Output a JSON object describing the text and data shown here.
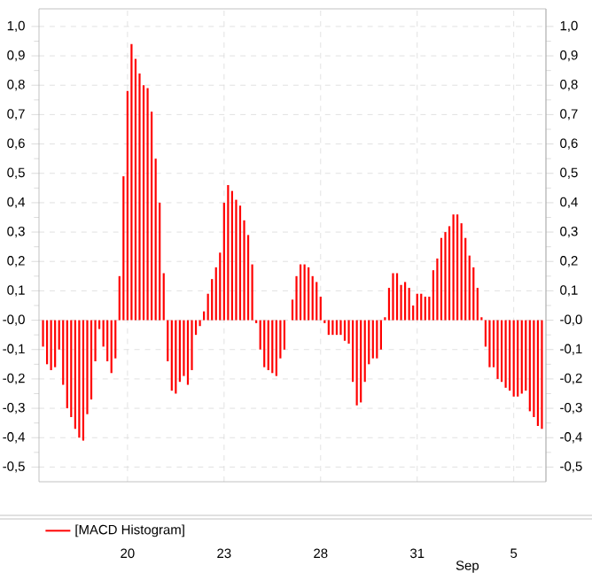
{
  "chart_data": {
    "type": "bar",
    "categories": [
      null,
      null,
      null,
      null,
      null,
      null,
      null,
      null,
      null,
      null,
      null,
      null,
      null,
      null,
      null,
      null,
      null,
      null,
      null,
      null,
      null,
      "20",
      null,
      null,
      null,
      null,
      null,
      null,
      null,
      null,
      null,
      null,
      null,
      null,
      null,
      null,
      null,
      null,
      null,
      null,
      null,
      null,
      null,
      null,
      null,
      "23",
      null,
      null,
      null,
      null,
      null,
      null,
      null,
      null,
      null,
      null,
      null,
      null,
      null,
      null,
      null,
      null,
      null,
      null,
      null,
      null,
      null,
      null,
      null,
      "28",
      null,
      null,
      null,
      null,
      null,
      null,
      null,
      null,
      null,
      null,
      null,
      null,
      null,
      null,
      null,
      null,
      null,
      null,
      null,
      null,
      null,
      null,
      null,
      "31",
      null,
      null,
      null,
      null,
      null,
      null,
      null,
      null,
      null,
      null,
      null,
      null,
      null,
      null,
      null,
      null,
      null,
      null,
      null,
      null,
      null,
      null,
      null,
      "5",
      null,
      null,
      null,
      null,
      null,
      null,
      null
    ],
    "series": [
      {
        "name": "[MACD Histogram]",
        "color": "#ff0000",
        "values": [
          -0.09,
          -0.15,
          -0.17,
          -0.16,
          -0.1,
          -0.22,
          -0.3,
          -0.33,
          -0.37,
          -0.4,
          -0.41,
          -0.32,
          -0.27,
          -0.14,
          -0.03,
          -0.09,
          -0.14,
          -0.18,
          -0.13,
          0.15,
          0.49,
          0.78,
          0.94,
          0.89,
          0.84,
          0.8,
          0.79,
          0.71,
          0.55,
          0.4,
          0.16,
          -0.14,
          -0.24,
          -0.25,
          -0.21,
          -0.19,
          -0.22,
          -0.17,
          -0.05,
          -0.02,
          0.03,
          0.09,
          0.14,
          0.18,
          0.23,
          0.4,
          0.46,
          0.44,
          0.41,
          0.39,
          0.34,
          0.29,
          0.19,
          -0.01,
          -0.1,
          -0.16,
          -0.17,
          -0.18,
          -0.19,
          -0.13,
          -0.1,
          0.0,
          0.07,
          0.15,
          0.19,
          0.19,
          0.18,
          0.15,
          0.13,
          0.08,
          -0.01,
          -0.05,
          -0.05,
          -0.05,
          -0.05,
          -0.07,
          -0.08,
          -0.21,
          -0.29,
          -0.28,
          -0.21,
          -0.15,
          -0.13,
          -0.13,
          -0.1,
          0.01,
          0.11,
          0.16,
          0.16,
          0.12,
          0.13,
          0.11,
          0.05,
          0.09,
          0.09,
          0.08,
          0.08,
          0.17,
          0.21,
          0.28,
          0.3,
          0.32,
          0.36,
          0.36,
          0.33,
          0.28,
          0.22,
          0.18,
          0.11,
          0.01,
          -0.09,
          -0.16,
          -0.16,
          -0.2,
          -0.21,
          -0.23,
          -0.24,
          -0.26,
          -0.26,
          -0.25,
          -0.24,
          -0.31,
          -0.33,
          -0.36,
          -0.37
        ]
      }
    ],
    "ylim": [
      -0.55,
      1.06
    ],
    "yticks": [
      {
        "value": 1.0,
        "label": "1,0"
      },
      {
        "value": 0.9,
        "label": "0,9"
      },
      {
        "value": 0.8,
        "label": "0,8"
      },
      {
        "value": 0.7,
        "label": "0,7"
      },
      {
        "value": 0.6,
        "label": "0,6"
      },
      {
        "value": 0.5,
        "label": "0,5"
      },
      {
        "value": 0.4,
        "label": "0,4"
      },
      {
        "value": 0.3,
        "label": "0,3"
      },
      {
        "value": 0.2,
        "label": "0,2"
      },
      {
        "value": 0.1,
        "label": "0,1"
      },
      {
        "value": 0.0,
        "label": "-0,0"
      },
      {
        "value": -0.1,
        "label": "-0,1"
      },
      {
        "value": -0.2,
        "label": "-0,2"
      },
      {
        "value": -0.3,
        "label": "-0,3"
      },
      {
        "value": -0.4,
        "label": "-0,4"
      },
      {
        "value": -0.5,
        "label": "-0,5"
      }
    ],
    "y2lim": [
      -0.55,
      1.06
    ],
    "y2ticks": [
      {
        "value": 1.0,
        "label": "1,0"
      },
      {
        "value": 0.9,
        "label": "0,9"
      },
      {
        "value": 0.8,
        "label": "0,8"
      },
      {
        "value": 0.7,
        "label": "0,7"
      },
      {
        "value": 0.6,
        "label": "0,6"
      },
      {
        "value": 0.5,
        "label": "0,5"
      },
      {
        "value": 0.4,
        "label": "0,4"
      },
      {
        "value": 0.3,
        "label": "0,3"
      },
      {
        "value": 0.2,
        "label": "0,2"
      },
      {
        "value": 0.1,
        "label": "0,1"
      },
      {
        "value": 0.0,
        "label": "-0,0"
      },
      {
        "value": -0.1,
        "label": "-0,1"
      },
      {
        "value": -0.2,
        "label": "-0,2"
      },
      {
        "value": -0.3,
        "label": "-0,3"
      },
      {
        "value": -0.4,
        "label": "-0,4"
      },
      {
        "value": -0.5,
        "label": "-0,5"
      }
    ],
    "annotations": [
      "Sep"
    ],
    "grid": true,
    "legend": "bottom left"
  }
}
